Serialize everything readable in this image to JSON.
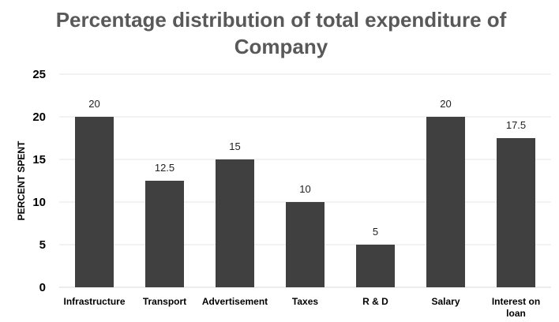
{
  "chart_data": {
    "type": "bar",
    "title_lines": [
      "Percentage distribution of total expenditure of",
      "Company"
    ],
    "xlabel": "",
    "ylabel": "PERCENT SPENT",
    "categories": [
      [
        "Infrastructure"
      ],
      [
        "Transport"
      ],
      [
        "Advertisement"
      ],
      [
        "Taxes"
      ],
      [
        "R & D"
      ],
      [
        "Salary"
      ],
      [
        "Interest on",
        "loan"
      ]
    ],
    "values": [
      20,
      12.5,
      15,
      10,
      5,
      20,
      17.5
    ],
    "value_labels": [
      "20",
      "12.5",
      "15",
      "10",
      "5",
      "20",
      "17.5"
    ],
    "ylim": [
      0,
      25
    ],
    "yticks": [
      0,
      5,
      10,
      15,
      20,
      25
    ],
    "grid": true,
    "legend": "none",
    "bar_color": "#404040",
    "grid_color": "#e6e6e6",
    "title_color": "#595959"
  }
}
